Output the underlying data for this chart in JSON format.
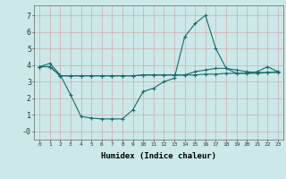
{
  "xlabel": "Humidex (Indice chaleur)",
  "background_color": "#cce8e8",
  "grid_color": "#c0d8d8",
  "line_color": "#1a6b6b",
  "x_values": [
    0,
    1,
    2,
    3,
    4,
    5,
    6,
    7,
    8,
    9,
    10,
    11,
    12,
    13,
    14,
    15,
    16,
    17,
    18,
    19,
    20,
    21,
    22,
    23
  ],
  "line1": [
    3.9,
    4.1,
    3.4,
    2.2,
    0.9,
    0.8,
    0.75,
    0.75,
    0.75,
    1.3,
    2.4,
    2.6,
    3.0,
    3.2,
    5.7,
    6.5,
    7.0,
    5.0,
    3.8,
    3.5,
    3.5,
    3.6,
    3.9,
    3.6
  ],
  "line2": [
    3.9,
    3.9,
    3.35,
    3.35,
    3.35,
    3.35,
    3.35,
    3.35,
    3.35,
    3.35,
    3.4,
    3.4,
    3.4,
    3.4,
    3.4,
    3.4,
    3.45,
    3.45,
    3.5,
    3.5,
    3.5,
    3.5,
    3.55,
    3.6
  ],
  "line3": [
    3.9,
    3.9,
    3.35,
    3.35,
    3.35,
    3.35,
    3.35,
    3.35,
    3.35,
    3.35,
    3.4,
    3.4,
    3.4,
    3.4,
    3.4,
    3.6,
    3.7,
    3.8,
    3.8,
    3.7,
    3.6,
    3.55,
    3.55,
    3.55
  ],
  "ylim": [
    -0.5,
    7.6
  ],
  "yticks": [
    0,
    1,
    2,
    3,
    4,
    5,
    6,
    7
  ],
  "ytick_labels": [
    "-0",
    "1",
    "2",
    "3",
    "4",
    "5",
    "6",
    "7"
  ],
  "figsize": [
    3.2,
    2.0
  ],
  "dpi": 100
}
